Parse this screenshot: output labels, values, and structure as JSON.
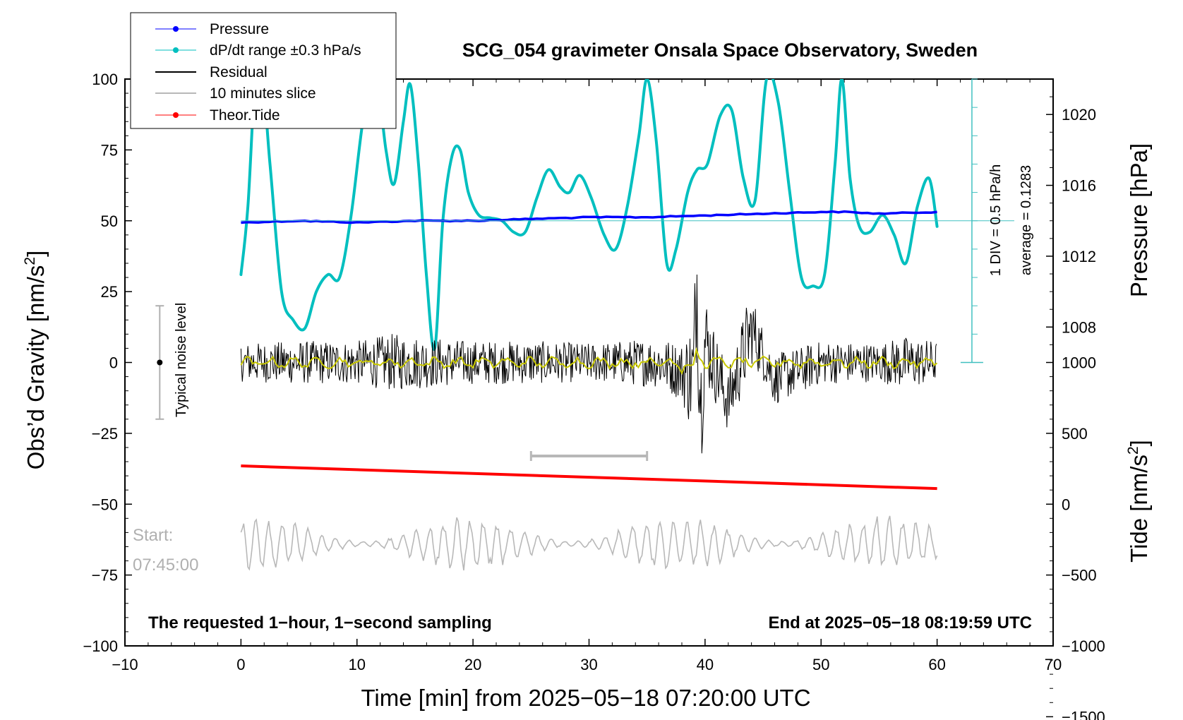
{
  "chart_data": {
    "type": "line",
    "title": "SCG_054 gravimeter Onsala Space Observatory, Sweden",
    "xlabel": "Time [min] from 2025−05−18 07:20:00 UTC",
    "xlim": [
      -10,
      70
    ],
    "x_ticks": [
      "−10",
      "0",
      "10",
      "20",
      "30",
      "40",
      "50",
      "60",
      "70"
    ],
    "ylabel_left": "Obs’d Gravity [nm/s²]",
    "ylabel_left_main": "Obs’d Gravity [nm/s",
    "ylabel_left_sup": "2",
    "ylabel_left_end": "]",
    "ylim_left": [
      -100,
      100
    ],
    "y_ticks_left": [
      "−100",
      "−75",
      "−50",
      "−25",
      "0",
      "25",
      "50",
      "75",
      "100"
    ],
    "ylabel_pressure": "Pressure [hPa]",
    "pressure_ticks": [
      "1008",
      "1012",
      "1016",
      "1020"
    ],
    "pressure_tick_values": [
      1008,
      1012,
      1016,
      1020
    ],
    "ylabel_tide": "Tide [nm/s²]",
    "ylabel_tide_main": "Tide [nm/s",
    "ylabel_tide_sup": "2",
    "ylabel_tide_end": "]",
    "tide_ticks": [
      "−1500",
      "−1000",
      "−500",
      "0",
      "500",
      "1000"
    ],
    "tide_tick_values": [
      -1500,
      -1000,
      -500,
      0,
      500,
      1000
    ],
    "legend": [
      {
        "label": "Pressure",
        "color": "#0000ff",
        "marker": true
      },
      {
        "label": "dP/dt range ±0.3 hPa/s",
        "color": "#00bfbf",
        "marker": true
      },
      {
        "label": "Residual",
        "color": "#000000",
        "marker": false
      },
      {
        "label": "10 minutes slice",
        "color": "#b8b8b8",
        "marker": false
      },
      {
        "label": "Theor.Tide",
        "color": "#ff0000",
        "marker": true
      }
    ],
    "legend_position": "top-left",
    "series": [
      {
        "name": "Pressure",
        "color": "#0000ff",
        "axis": "pressure",
        "x": [
          0,
          5,
          10,
          15,
          20,
          25,
          30,
          35,
          40,
          45,
          50,
          52,
          55,
          60
        ],
        "values": [
          1013.9,
          1014.0,
          1013.9,
          1014.0,
          1014.0,
          1014.1,
          1014.2,
          1014.2,
          1014.3,
          1014.4,
          1014.5,
          1014.5,
          1014.4,
          1014.5
        ]
      },
      {
        "name": "dP/dt range ±0.3 hPa/s",
        "color": "#00bfbf",
        "axis": "left",
        "x": [
          0,
          0.6,
          1.5,
          2.5,
          3.5,
          4.5,
          5.5,
          6.5,
          7.5,
          8.5,
          9.5,
          10.5,
          11.5,
          12.5,
          13.2,
          14,
          14.6,
          15.3,
          16,
          16.7,
          17.4,
          18.2,
          18.9,
          19.6,
          20.5,
          21.5,
          22.5,
          23.5,
          24.5,
          25.5,
          26.5,
          27.5,
          28.3,
          29.2,
          30.2,
          31.3,
          32.3,
          33.3,
          34.3,
          35,
          35.8,
          36.7,
          37.5,
          38.5,
          39.3,
          40.2,
          41.3,
          42.3,
          43.3,
          44.3,
          45.3,
          46.3,
          47.3,
          48.3,
          49.3,
          50.3,
          51.2,
          51.8,
          52.5,
          53.3,
          54.2,
          55.3,
          56.3,
          57.3,
          58.3,
          59.3,
          60
        ],
        "values": [
          31,
          55,
          112,
          70,
          25,
          15,
          12,
          25,
          31,
          30,
          52,
          85,
          105,
          75,
          63,
          85,
          98,
          70,
          30,
          5,
          50,
          73,
          75,
          60,
          52,
          51,
          50,
          46,
          46,
          58,
          68,
          62,
          60,
          66,
          58,
          45,
          40,
          55,
          80,
          100,
          78,
          35,
          40,
          60,
          68,
          70,
          87,
          89,
          65,
          57,
          100,
          92,
          60,
          30,
          27,
          31,
          70,
          100,
          65,
          48,
          46,
          52,
          45,
          35,
          55,
          65,
          48
        ]
      },
      {
        "name": "Residual",
        "color": "#000000",
        "axis": "left",
        "x": [
          0,
          10,
          20,
          30,
          36,
          39,
          39.3,
          39.6,
          40,
          42,
          44,
          46,
          50,
          60
        ],
        "values": [
          0,
          0,
          0,
          0,
          0,
          -5,
          31,
          -18,
          8,
          -14,
          12,
          -6,
          0,
          0
        ],
        "envelope_nm_s2": [
          [
            0,
            8
          ],
          [
            5,
            9
          ],
          [
            10,
            9
          ],
          [
            13,
            12
          ],
          [
            20,
            9
          ],
          [
            25,
            9
          ],
          [
            30,
            8
          ],
          [
            35,
            10
          ],
          [
            38,
            12
          ],
          [
            39.3,
            31
          ],
          [
            40.5,
            16
          ],
          [
            42,
            13
          ],
          [
            43.5,
            17
          ],
          [
            45,
            11
          ],
          [
            50,
            9
          ],
          [
            55,
            8
          ],
          [
            57,
            11
          ],
          [
            60,
            9
          ]
        ]
      },
      {
        "name": "Residual (smoothed)",
        "color": "#c8c800",
        "axis": "left",
        "x": [
          0,
          15,
          30,
          45,
          60
        ],
        "values": [
          0,
          0,
          0,
          0,
          0
        ]
      },
      {
        "name": "10 minutes slice",
        "color": "#b8b8b8",
        "axis": "left",
        "x": [
          0,
          10,
          20,
          30,
          40,
          50,
          60
        ],
        "values": [
          -64,
          -64,
          -64,
          -64,
          -64,
          -64,
          -64
        ],
        "amplitude_nm_s2": 8
      },
      {
        "name": "Theor.Tide",
        "color": "#ff0000",
        "axis": "tide",
        "x": [
          0,
          60
        ],
        "values": [
          270,
          110
        ]
      }
    ],
    "slice_range_min": [
      25,
      35
    ],
    "pressure_scale_text": "1 DIV = 0.5 hPa/h",
    "pressure_average_text": "average = 0.1283",
    "pressure_scale_axis_x_min": 63,
    "pressure_scale_divisions": 10,
    "pressure_scale_range_nm_s2": [
      0,
      100
    ],
    "noise_level": {
      "label": "Typical noise level",
      "x_min": -7,
      "center": 0,
      "half_range": 20
    },
    "start_label": "Start:",
    "start_time": "07:45:00",
    "footer_left": "The requested 1−hour, 1−second sampling",
    "footer_right": "End at 2025−05−18 08:19:59 UTC",
    "grid": false
  }
}
